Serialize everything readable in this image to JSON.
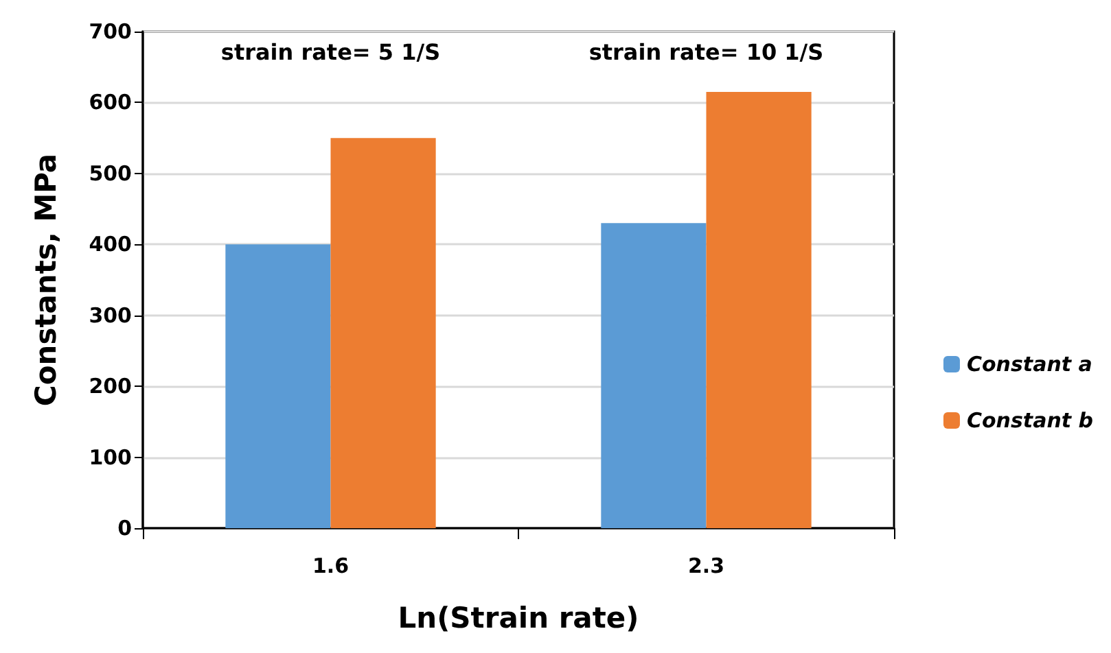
{
  "chart_data": {
    "type": "bar",
    "xlabel": "Ln(Strain rate)",
    "ylabel": "Constants, MPa",
    "categories": [
      "1.6",
      "2.3"
    ],
    "series": [
      {
        "name": "Constant a",
        "color": "#5b9bd5",
        "values": [
          400,
          430
        ]
      },
      {
        "name": "Constant b",
        "color": "#ed7d31",
        "values": [
          550,
          615
        ]
      }
    ],
    "ylim": [
      0,
      700
    ],
    "yticks": [
      0,
      100,
      200,
      300,
      400,
      500,
      600,
      700
    ],
    "grid": "y",
    "legend": "right",
    "annotations": [
      "strain rate= 5 1/S",
      "strain rate= 10 1/S"
    ]
  }
}
